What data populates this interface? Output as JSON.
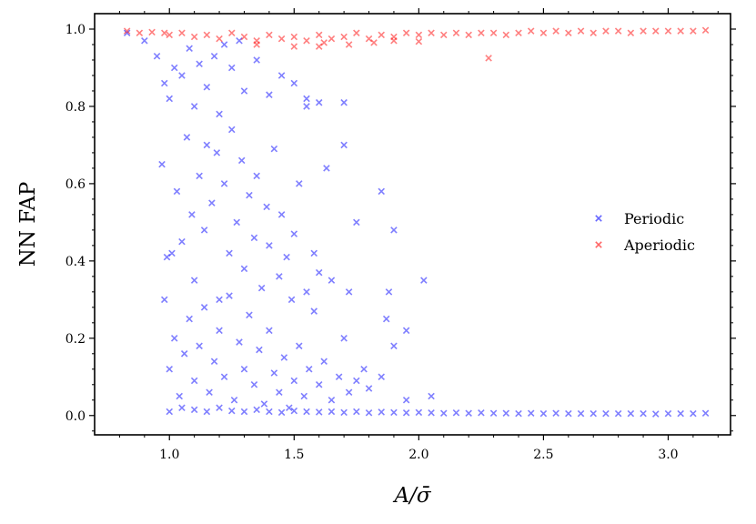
{
  "chart_data": {
    "type": "scatter",
    "title": "",
    "xlabel": "A/σ̄",
    "ylabel": "NN FAP",
    "xlim": [
      0.7,
      3.25
    ],
    "ylim": [
      -0.05,
      1.04
    ],
    "xticks": [
      1.0,
      1.5,
      2.0,
      2.5,
      3.0
    ],
    "xtick_labels": [
      "1.0",
      "1.5",
      "2.0",
      "2.5",
      "3.0"
    ],
    "yticks": [
      0.0,
      0.2,
      0.4,
      0.6,
      0.8,
      1.0
    ],
    "ytick_labels": [
      "0.0",
      "0.2",
      "0.4",
      "0.6",
      "0.8",
      "1.0"
    ],
    "grid": false,
    "legend_position": "center-right",
    "series": [
      {
        "name": "Periodic",
        "color": "#0000ff",
        "marker": "x",
        "alpha": 0.35,
        "points": [
          [
            0.83,
            0.99
          ],
          [
            0.9,
            0.97
          ],
          [
            0.95,
            0.93
          ],
          [
            0.98,
            0.86
          ],
          [
            1.0,
            0.82
          ],
          [
            1.02,
            0.9
          ],
          [
            1.05,
            0.88
          ],
          [
            1.08,
            0.95
          ],
          [
            1.1,
            0.8
          ],
          [
            1.12,
            0.91
          ],
          [
            1.15,
            0.85
          ],
          [
            1.18,
            0.93
          ],
          [
            1.2,
            0.78
          ],
          [
            1.22,
            0.96
          ],
          [
            1.25,
            0.9
          ],
          [
            1.28,
            0.97
          ],
          [
            1.3,
            0.84
          ],
          [
            1.35,
            0.92
          ],
          [
            1.4,
            0.83
          ],
          [
            1.45,
            0.88
          ],
          [
            1.5,
            0.86
          ],
          [
            1.55,
            0.82
          ],
          [
            1.6,
            0.81
          ],
          [
            1.7,
            0.81
          ],
          [
            0.97,
            0.65
          ],
          [
            0.99,
            0.41
          ],
          [
            1.01,
            0.42
          ],
          [
            1.03,
            0.58
          ],
          [
            1.05,
            0.45
          ],
          [
            1.07,
            0.72
          ],
          [
            1.09,
            0.52
          ],
          [
            1.1,
            0.35
          ],
          [
            1.12,
            0.62
          ],
          [
            1.14,
            0.48
          ],
          [
            1.15,
            0.7
          ],
          [
            1.17,
            0.55
          ],
          [
            1.19,
            0.68
          ],
          [
            1.2,
            0.3
          ],
          [
            1.22,
            0.6
          ],
          [
            1.24,
            0.42
          ],
          [
            1.25,
            0.74
          ],
          [
            1.27,
            0.5
          ],
          [
            1.29,
            0.66
          ],
          [
            1.3,
            0.38
          ],
          [
            1.32,
            0.57
          ],
          [
            1.34,
            0.46
          ],
          [
            1.35,
            0.62
          ],
          [
            1.37,
            0.33
          ],
          [
            1.39,
            0.54
          ],
          [
            1.4,
            0.44
          ],
          [
            1.42,
            0.69
          ],
          [
            1.44,
            0.36
          ],
          [
            1.45,
            0.52
          ],
          [
            1.47,
            0.41
          ],
          [
            1.49,
            0.3
          ],
          [
            1.5,
            0.47
          ],
          [
            1.52,
            0.6
          ],
          [
            1.55,
            0.32
          ],
          [
            1.58,
            0.42
          ],
          [
            1.6,
            0.37
          ],
          [
            1.65,
            0.35
          ],
          [
            1.72,
            0.32
          ],
          [
            1.85,
            0.58
          ],
          [
            1.88,
            0.32
          ],
          [
            1.9,
            0.48
          ],
          [
            1.75,
            0.5
          ],
          [
            2.02,
            0.35
          ],
          [
            1.55,
            0.8
          ],
          [
            1.7,
            0.7
          ],
          [
            1.63,
            0.64
          ],
          [
            0.98,
            0.3
          ],
          [
            1.0,
            0.12
          ],
          [
            1.02,
            0.2
          ],
          [
            1.04,
            0.05
          ],
          [
            1.06,
            0.16
          ],
          [
            1.08,
            0.25
          ],
          [
            1.1,
            0.09
          ],
          [
            1.12,
            0.18
          ],
          [
            1.14,
            0.28
          ],
          [
            1.16,
            0.06
          ],
          [
            1.18,
            0.14
          ],
          [
            1.2,
            0.22
          ],
          [
            1.22,
            0.1
          ],
          [
            1.24,
            0.31
          ],
          [
            1.26,
            0.04
          ],
          [
            1.28,
            0.19
          ],
          [
            1.3,
            0.12
          ],
          [
            1.32,
            0.26
          ],
          [
            1.34,
            0.08
          ],
          [
            1.36,
            0.17
          ],
          [
            1.38,
            0.03
          ],
          [
            1.4,
            0.22
          ],
          [
            1.42,
            0.11
          ],
          [
            1.44,
            0.06
          ],
          [
            1.46,
            0.15
          ],
          [
            1.48,
            0.02
          ],
          [
            1.5,
            0.09
          ],
          [
            1.52,
            0.18
          ],
          [
            1.54,
            0.05
          ],
          [
            1.56,
            0.12
          ],
          [
            1.58,
            0.27
          ],
          [
            1.6,
            0.08
          ],
          [
            1.62,
            0.14
          ],
          [
            1.65,
            0.04
          ],
          [
            1.68,
            0.1
          ],
          [
            1.72,
            0.06
          ],
          [
            1.75,
            0.09
          ],
          [
            1.8,
            0.07
          ],
          [
            1.85,
            0.1
          ],
          [
            1.9,
            0.18
          ],
          [
            1.95,
            0.04
          ],
          [
            2.05,
            0.05
          ],
          [
            1.87,
            0.25
          ],
          [
            1.78,
            0.12
          ],
          [
            1.7,
            0.2
          ],
          [
            1.95,
            0.22
          ],
          [
            1.0,
            0.01
          ],
          [
            1.05,
            0.02
          ],
          [
            1.1,
            0.015
          ],
          [
            1.15,
            0.01
          ],
          [
            1.2,
            0.02
          ],
          [
            1.25,
            0.012
          ],
          [
            1.3,
            0.01
          ],
          [
            1.35,
            0.015
          ],
          [
            1.4,
            0.01
          ],
          [
            1.45,
            0.008
          ],
          [
            1.5,
            0.012
          ],
          [
            1.55,
            0.01
          ],
          [
            1.6,
            0.009
          ],
          [
            1.65,
            0.01
          ],
          [
            1.7,
            0.008
          ],
          [
            1.75,
            0.01
          ],
          [
            1.8,
            0.007
          ],
          [
            1.85,
            0.009
          ],
          [
            1.9,
            0.008
          ],
          [
            1.95,
            0.007
          ],
          [
            2.0,
            0.008
          ],
          [
            2.05,
            0.007
          ],
          [
            2.1,
            0.006
          ],
          [
            2.15,
            0.007
          ],
          [
            2.2,
            0.006
          ],
          [
            2.25,
            0.007
          ],
          [
            2.3,
            0.006
          ],
          [
            2.35,
            0.006
          ],
          [
            2.4,
            0.005
          ],
          [
            2.45,
            0.006
          ],
          [
            2.5,
            0.005
          ],
          [
            2.55,
            0.006
          ],
          [
            2.6,
            0.005
          ],
          [
            2.65,
            0.005
          ],
          [
            2.7,
            0.005
          ],
          [
            2.75,
            0.005
          ],
          [
            2.8,
            0.005
          ],
          [
            2.85,
            0.005
          ],
          [
            2.9,
            0.005
          ],
          [
            2.95,
            0.004
          ],
          [
            3.0,
            0.005
          ],
          [
            3.05,
            0.005
          ],
          [
            3.1,
            0.005
          ],
          [
            3.15,
            0.006
          ]
        ]
      },
      {
        "name": "Aperiodic",
        "color": "#ff0000",
        "marker": "x",
        "alpha": 0.35,
        "points": [
          [
            0.83,
            0.995
          ],
          [
            0.88,
            0.99
          ],
          [
            0.93,
            0.992
          ],
          [
            0.98,
            0.99
          ],
          [
            1.0,
            0.985
          ],
          [
            1.05,
            0.99
          ],
          [
            1.1,
            0.98
          ],
          [
            1.15,
            0.985
          ],
          [
            1.2,
            0.975
          ],
          [
            1.25,
            0.99
          ],
          [
            1.3,
            0.98
          ],
          [
            1.35,
            0.97
          ],
          [
            1.4,
            0.985
          ],
          [
            1.45,
            0.975
          ],
          [
            1.5,
            0.98
          ],
          [
            1.55,
            0.97
          ],
          [
            1.6,
            0.985
          ],
          [
            1.65,
            0.975
          ],
          [
            1.7,
            0.98
          ],
          [
            1.75,
            0.99
          ],
          [
            1.8,
            0.975
          ],
          [
            1.85,
            0.985
          ],
          [
            1.9,
            0.98
          ],
          [
            1.95,
            0.99
          ],
          [
            2.0,
            0.985
          ],
          [
            2.05,
            0.99
          ],
          [
            2.1,
            0.985
          ],
          [
            2.15,
            0.99
          ],
          [
            2.2,
            0.985
          ],
          [
            2.25,
            0.99
          ],
          [
            2.3,
            0.99
          ],
          [
            2.35,
            0.985
          ],
          [
            2.4,
            0.99
          ],
          [
            2.45,
            0.995
          ],
          [
            2.5,
            0.99
          ],
          [
            2.55,
            0.995
          ],
          [
            2.6,
            0.99
          ],
          [
            2.65,
            0.995
          ],
          [
            2.7,
            0.99
          ],
          [
            2.75,
            0.995
          ],
          [
            2.8,
            0.995
          ],
          [
            2.85,
            0.99
          ],
          [
            2.9,
            0.995
          ],
          [
            2.95,
            0.995
          ],
          [
            3.0,
            0.995
          ],
          [
            3.05,
            0.995
          ],
          [
            3.1,
            0.995
          ],
          [
            3.15,
            0.997
          ],
          [
            1.35,
            0.96
          ],
          [
            1.5,
            0.955
          ],
          [
            1.62,
            0.965
          ],
          [
            1.72,
            0.96
          ],
          [
            1.82,
            0.965
          ],
          [
            1.9,
            0.97
          ],
          [
            2.0,
            0.968
          ],
          [
            1.6,
            0.955
          ],
          [
            2.28,
            0.925
          ]
        ]
      }
    ]
  }
}
